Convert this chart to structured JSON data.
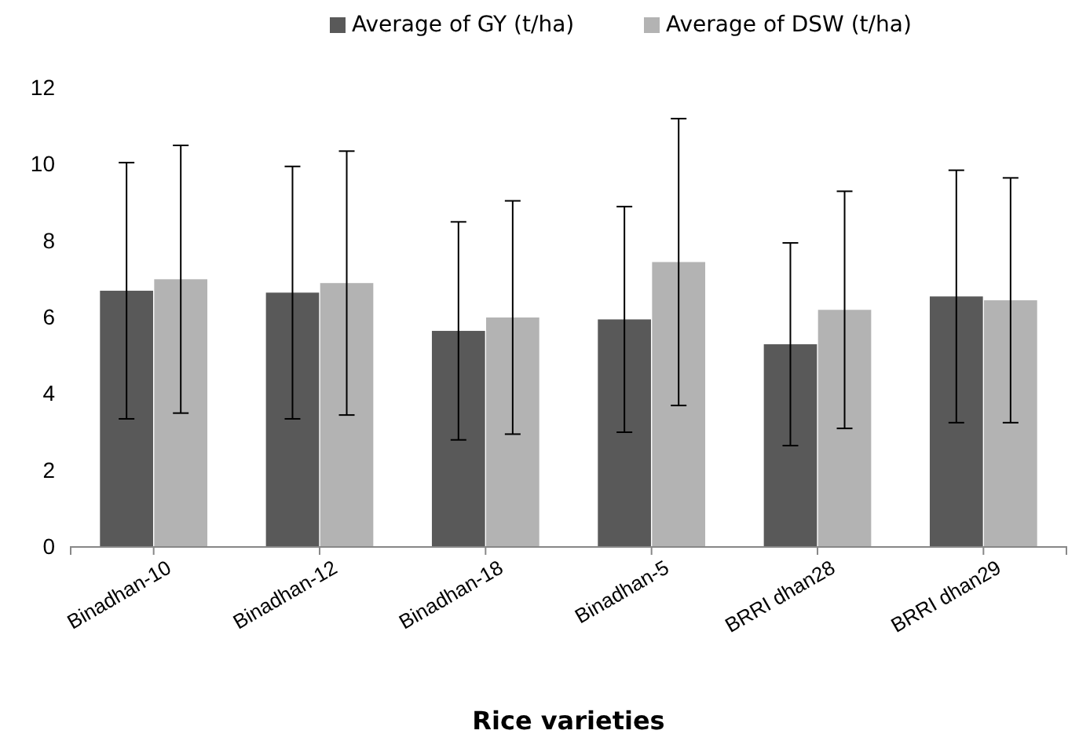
{
  "chart_data": {
    "type": "bar",
    "xlabel": "Rice varieties",
    "categories": [
      "Binadhan-10",
      "Binadhan-12",
      "Binadhan-18",
      "Binadhan-5",
      "BRRI dhan28",
      "BRRI dhan29"
    ],
    "series": [
      {
        "name": "Average of GY (t/ha)",
        "color": "#595959",
        "values": [
          6.7,
          6.65,
          5.65,
          5.95,
          5.3,
          6.55
        ],
        "errors": [
          3.35,
          3.3,
          2.85,
          2.95,
          2.65,
          3.3
        ]
      },
      {
        "name": "Average of DSW (t/ha)",
        "color": "#b3b3b3",
        "values": [
          7.0,
          6.9,
          6.0,
          7.45,
          6.2,
          6.45
        ],
        "errors": [
          3.5,
          3.45,
          3.05,
          3.75,
          3.1,
          3.2
        ]
      }
    ],
    "ylim": [
      0,
      12
    ],
    "yticks": [
      0,
      2,
      4,
      6,
      8,
      10,
      12
    ],
    "grid": false,
    "legend": "top"
  }
}
